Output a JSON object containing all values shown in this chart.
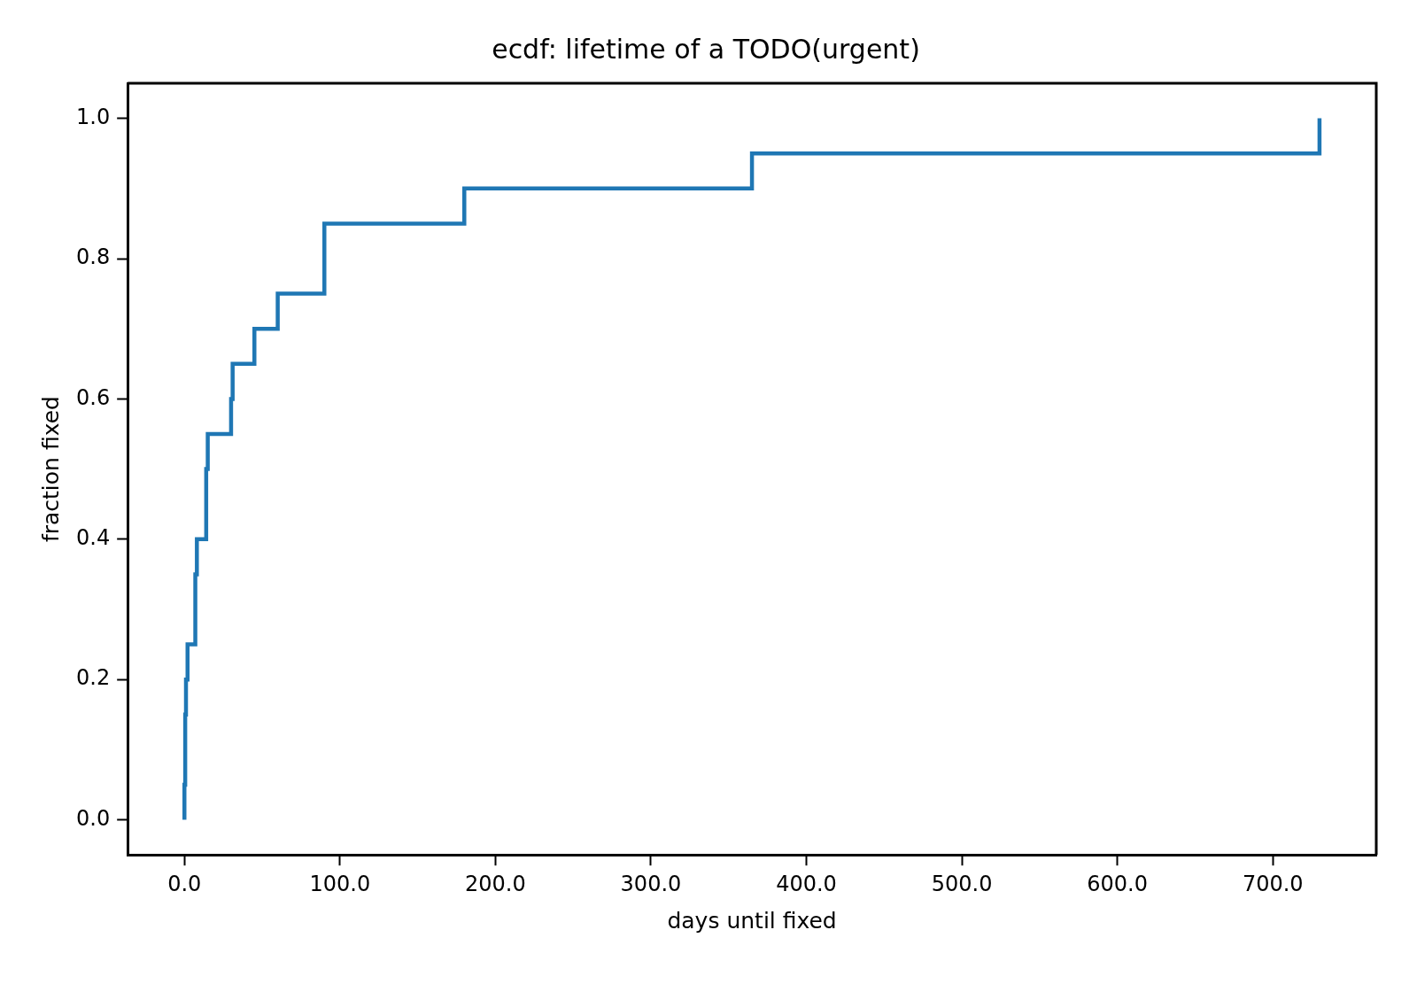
{
  "chart_data": {
    "type": "step",
    "title": "ecdf: lifetime of a TODO(urgent)",
    "xlabel": "days until fixed",
    "ylabel": "fraction fixed",
    "series": [
      {
        "color": "#1f77b4",
        "x": [
          0,
          0,
          0.5,
          1,
          2,
          7,
          8,
          14,
          15,
          30,
          31,
          45,
          60,
          90,
          180,
          365,
          730
        ],
        "values": [
          0,
          0.05,
          0.15,
          0.2,
          0.25,
          0.35,
          0.4,
          0.5,
          0.55,
          0.6,
          0.65,
          0.7,
          0.75,
          0.85,
          0.9,
          0.95,
          1.0
        ]
      }
    ],
    "xlim": [
      -36.5,
      766.5
    ],
    "ylim": [
      -0.05,
      1.05
    ],
    "xticks": [
      {
        "value": 0,
        "label": "0.0"
      },
      {
        "value": 100,
        "label": "100.0"
      },
      {
        "value": 200,
        "label": "200.0"
      },
      {
        "value": 300,
        "label": "300.0"
      },
      {
        "value": 400,
        "label": "400.0"
      },
      {
        "value": 500,
        "label": "500.0"
      },
      {
        "value": 600,
        "label": "600.0"
      },
      {
        "value": 700,
        "label": "700.0"
      }
    ],
    "yticks": [
      {
        "value": 0,
        "label": "0.0"
      },
      {
        "value": 0.2,
        "label": "0.2"
      },
      {
        "value": 0.4,
        "label": "0.4"
      },
      {
        "value": 0.6,
        "label": "0.6"
      },
      {
        "value": 0.8,
        "label": "0.8"
      },
      {
        "value": 1,
        "label": "1.0"
      }
    ],
    "grid": false,
    "legend": false,
    "marker": "none",
    "line_style": "solid"
  }
}
